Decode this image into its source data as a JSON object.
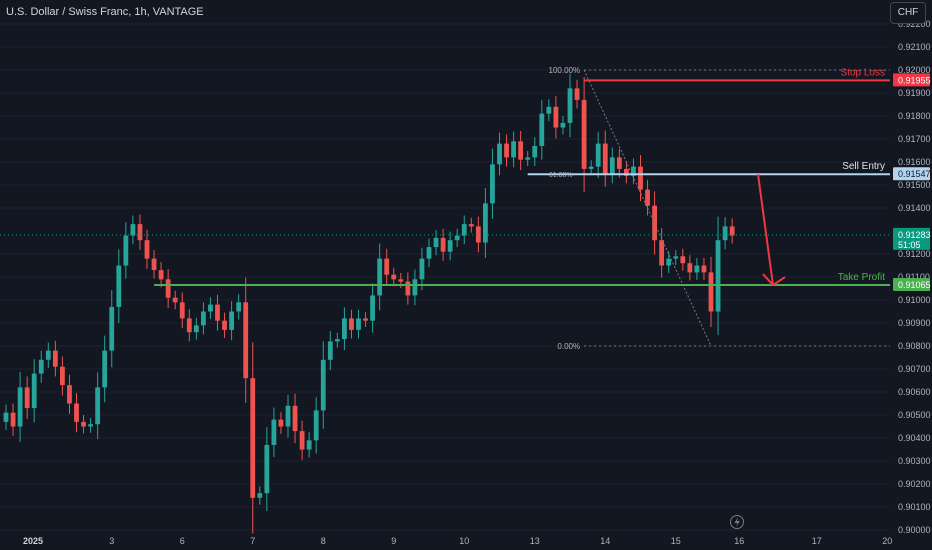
{
  "header": {
    "symbol_title": "U.S. Dollar / Swiss Franc, 1h, VANTAGE",
    "currency_button": "CHF"
  },
  "colors": {
    "background": "#131722",
    "up": "#26a69a",
    "down": "#ef5350",
    "stop": "#f23645",
    "entry": "#b2d4ee",
    "profit": "#4caf50",
    "axis_text": "#b2b5be",
    "grid": "#1e222d",
    "current_price": "#089981"
  },
  "chart_data": {
    "type": "candlestick",
    "symbol": "U.S. Dollar / Swiss Franc",
    "interval": "1h",
    "broker": "VANTAGE",
    "ylim": [
      0.9,
      0.923
    ],
    "y_ticks": [
      "0.92200",
      "0.92100",
      "0.92000",
      "0.91900",
      "0.91800",
      "0.91700",
      "0.91600",
      "0.91500",
      "0.91400",
      "0.91200",
      "0.91100",
      "0.91000",
      "0.90900",
      "0.90800",
      "0.90700",
      "0.90600",
      "0.90500",
      "0.90400",
      "0.90300",
      "0.90200",
      "0.90100",
      "0.90000"
    ],
    "y_tick_values": [
      0.922,
      0.921,
      0.92,
      0.919,
      0.918,
      0.917,
      0.916,
      0.915,
      0.914,
      0.912,
      0.911,
      0.91,
      0.909,
      0.908,
      0.907,
      0.906,
      0.905,
      0.904,
      0.903,
      0.902,
      0.901,
      0.9
    ],
    "x_ticks": [
      "2025",
      "3",
      "6",
      "7",
      "8",
      "9",
      "10",
      "13",
      "14",
      "15",
      "16",
      "17",
      "20"
    ],
    "x_tick_index": [
      0,
      15,
      25,
      35,
      45,
      55,
      65,
      75,
      85,
      95,
      104,
      115,
      125
    ],
    "close": [
      0.9051,
      0.9045,
      0.9062,
      0.9053,
      0.9068,
      0.9074,
      0.9078,
      0.9071,
      0.9063,
      0.9055,
      0.9047,
      0.9045,
      0.9046,
      0.9062,
      0.9078,
      0.9097,
      0.9115,
      0.9128,
      0.9133,
      0.9126,
      0.9118,
      0.9113,
      0.9109,
      0.9101,
      0.9099,
      0.9092,
      0.9086,
      0.9089,
      0.9095,
      0.9098,
      0.9091,
      0.9087,
      0.9095,
      0.9099,
      0.9066,
      0.9014,
      0.9016,
      0.9037,
      0.9048,
      0.9045,
      0.9054,
      0.9043,
      0.9035,
      0.9039,
      0.9052,
      0.9074,
      0.9082,
      0.9083,
      0.9092,
      0.9087,
      0.9092,
      0.9091,
      0.9102,
      0.9118,
      0.9111,
      0.9109,
      0.9108,
      0.9102,
      0.9109,
      0.9118,
      0.9123,
      0.9127,
      0.9121,
      0.9126,
      0.9128,
      0.9133,
      0.9132,
      0.9125,
      0.9142,
      0.9159,
      0.9168,
      0.9162,
      0.9169,
      0.9161,
      0.9162,
      0.9167,
      0.9181,
      0.9184,
      0.9175,
      0.9177,
      0.9192,
      0.9187,
      0.9157,
      0.9158,
      0.9168,
      0.9155,
      0.9162,
      0.9157,
      0.9154,
      0.9158,
      0.9148,
      0.9141,
      0.9126,
      0.9115,
      0.9118,
      0.9119,
      0.9116,
      0.9112,
      0.9115,
      0.9112,
      0.9095,
      0.9126,
      0.9132,
      0.9128
    ],
    "annotations": {
      "stop_loss": {
        "label": "Stop Loss",
        "price": 0.91955,
        "price_label": "0.91955"
      },
      "sell_entry": {
        "label": "Sell Entry",
        "price": 0.91547,
        "price_label": "0.91547"
      },
      "take_profit": {
        "label": "Take Profit",
        "price": 0.91065,
        "price_label": "0.91065"
      },
      "current": {
        "price": 0.91283,
        "price_label": "0.91283",
        "countdown": "51:05"
      },
      "fib_high": {
        "label": "100.00%",
        "price": 0.92
      },
      "fib_low": {
        "label": "0.00%",
        "price": 0.908
      },
      "fib_mid": {
        "label": "61.80%"
      }
    }
  }
}
